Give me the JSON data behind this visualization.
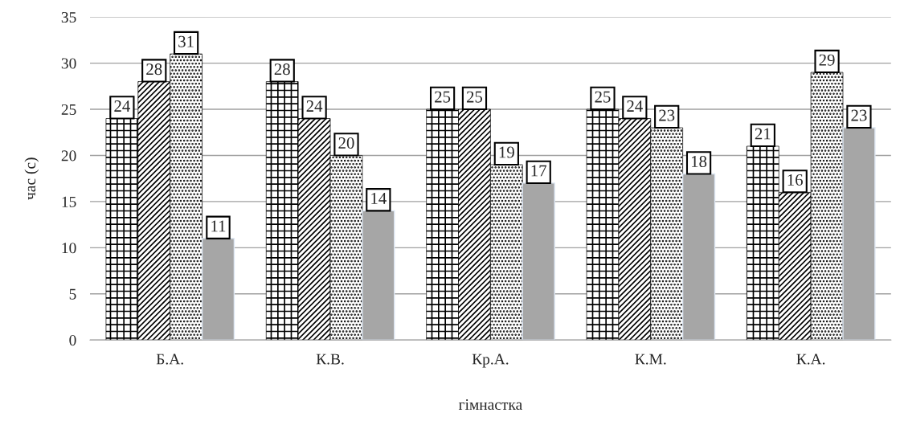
{
  "chart_data": {
    "type": "bar",
    "xlabel": "гімнастка",
    "ylabel": "час (с)",
    "categories": [
      "Б.А.",
      "К.В.",
      "Кр.А.",
      "К.М.",
      "К.А."
    ],
    "series": [
      {
        "color": "#000000",
        "values": [
          24,
          28,
          25,
          25,
          21
        ]
      },
      {
        "color": "#000000",
        "values": [
          28,
          24,
          25,
          24,
          16
        ]
      },
      {
        "color": "#000000",
        "values": [
          31,
          20,
          19,
          23,
          29
        ]
      },
      {
        "color": "#a6a6a6",
        "values": [
          11,
          14,
          17,
          18,
          23
        ]
      }
    ],
    "ylim": [
      0,
      35
    ],
    "yticks": [
      0,
      5,
      10,
      15,
      20,
      25,
      30,
      35
    ],
    "grid": "y",
    "data_labels": true
  }
}
